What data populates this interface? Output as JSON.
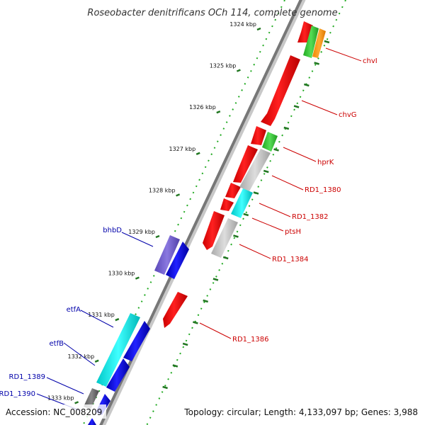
{
  "title": "Roseobacter denitrificans OCh 114, complete genome",
  "accession": "Accession: NC_008209",
  "summary": "Topology: circular; Length: 4,133,097 bp; Genes: 3,988",
  "colors": {
    "backbone": "#777777",
    "forward_gene": "#ff0000",
    "reverse_gene": "#0000ee",
    "forward_label": "#cc0000",
    "reverse_label": "#0000aa",
    "tick_major": "#227722",
    "tick_minor": "#22aa22"
  },
  "kbp_labels": [
    {
      "text": "1324 kbp",
      "pos": 1324
    },
    {
      "text": "1325 kbp",
      "pos": 1325
    },
    {
      "text": "1326 kbp",
      "pos": 1326
    },
    {
      "text": "1327 kbp",
      "pos": 1327
    },
    {
      "text": "1328 kbp",
      "pos": 1328
    },
    {
      "text": "1329 kbp",
      "pos": 1329
    },
    {
      "text": "1330 kbp",
      "pos": 1330
    },
    {
      "text": "1331 kbp",
      "pos": 1331
    },
    {
      "text": "1332 kbp",
      "pos": 1332
    },
    {
      "text": "1333 kbp",
      "pos": 1333
    }
  ],
  "forward_labels": [
    {
      "text": "chvI"
    },
    {
      "text": "chvG"
    },
    {
      "text": "hprK"
    },
    {
      "text": "RD1_1380"
    },
    {
      "text": "RD1_1382"
    },
    {
      "text": "ptsH"
    },
    {
      "text": "RD1_1384"
    },
    {
      "text": "RD1_1386"
    }
  ],
  "reverse_labels": [
    {
      "text": "bhbD"
    },
    {
      "text": "etfA"
    },
    {
      "text": "etfB"
    },
    {
      "text": "RD1_1389"
    },
    {
      "text": "RD1_1390"
    }
  ]
}
